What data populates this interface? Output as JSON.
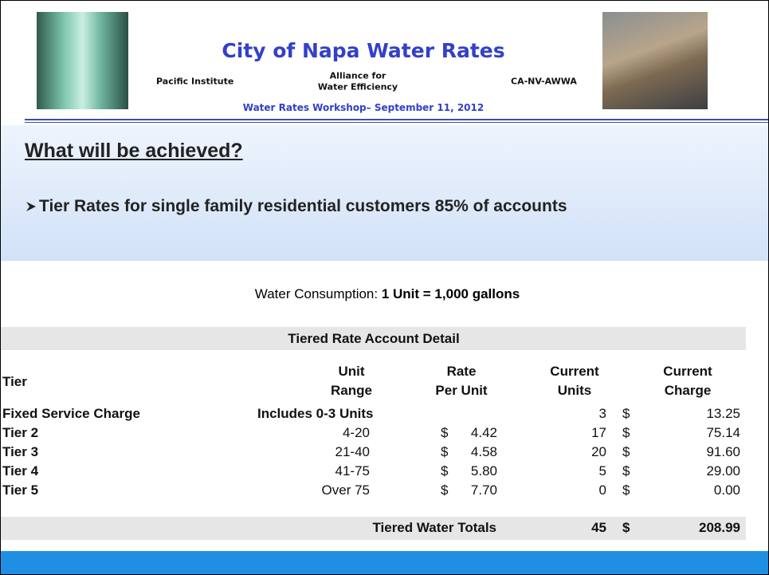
{
  "header": {
    "title": "City of Napa Water Rates",
    "organizations": [
      [
        "Pacific Institute"
      ],
      [
        "Alliance for",
        "Water Efficiency"
      ],
      [
        "CA-NV-AWWA"
      ]
    ],
    "subtitle": "Water Rates Workshop– September 11, 2012"
  },
  "section": {
    "heading": "What will be achieved?",
    "bullets": [
      "Tier Rates for single family residential customers 85% of accounts"
    ]
  },
  "consumption": {
    "label": "Water Consumption: ",
    "value": "1 Unit = 1,000 gallons"
  },
  "table": {
    "title": "Tiered Rate Account Detail",
    "columns": {
      "tier": [
        "Tier"
      ],
      "range": [
        "Unit",
        "Range"
      ],
      "rate": [
        "Rate",
        "Per Unit"
      ],
      "units": [
        "Current",
        "Units"
      ],
      "charge": [
        "Current",
        "Charge"
      ]
    },
    "rows": [
      {
        "tier": "Fixed Service Charge",
        "range": "Includes 0-3 Units",
        "units": "3",
        "charge_symbol": "$",
        "charge": "13.25"
      },
      {
        "tier": "Tier 2",
        "range": "4-20",
        "rate_symbol": "$",
        "rate": "4.42",
        "units": "17",
        "charge_symbol": "$",
        "charge": "75.14"
      },
      {
        "tier": "Tier 3",
        "range": "21-40",
        "rate_symbol": "$",
        "rate": "4.58",
        "units": "20",
        "charge_symbol": "$",
        "charge": "91.60"
      },
      {
        "tier": "Tier 4",
        "range": "41-75",
        "rate_symbol": "$",
        "rate": "5.80",
        "units": "5",
        "charge_symbol": "$",
        "charge": "29.00"
      },
      {
        "tier": "Tier 5",
        "range": "Over 75",
        "rate_symbol": "$",
        "rate": "7.70",
        "units": "0",
        "charge_symbol": "$",
        "charge": "0.00"
      }
    ],
    "totals": {
      "label": "Tiered Water Totals",
      "units": "45",
      "charge_symbol": "$",
      "charge": "208.99"
    }
  }
}
